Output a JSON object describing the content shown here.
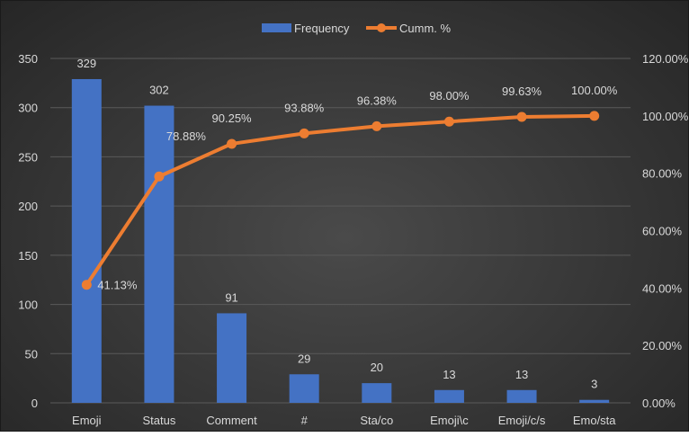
{
  "chart_data": {
    "type": "bar",
    "categories": [
      "Emoji",
      "Status",
      "Comment",
      "#",
      "Sta/co",
      "Emoji\\c",
      "Emoji/c/s",
      "Emo/sta"
    ],
    "series": [
      {
        "name": "Frequency",
        "type": "bar",
        "axis": "left",
        "values": [
          329,
          302,
          91,
          29,
          20,
          13,
          13,
          3
        ],
        "labels": [
          "329",
          "302",
          "91",
          "29",
          "20",
          "13",
          "13",
          "3"
        ],
        "color": "#4472C4"
      },
      {
        "name": "Cumm. %",
        "type": "line",
        "axis": "right",
        "values": [
          41.13,
          78.88,
          90.25,
          93.88,
          96.38,
          98.0,
          99.63,
          100.0
        ],
        "labels": [
          "41.13%",
          "78.88%",
          "90.25%",
          "93.88%",
          "96.38%",
          "98.00%",
          "99.63%",
          "100.00%"
        ],
        "color": "#ED7D31"
      }
    ],
    "y_left": {
      "min": 0,
      "max": 350,
      "ticks": [
        0,
        50,
        100,
        150,
        200,
        250,
        300,
        350
      ],
      "tick_labels": [
        "0",
        "50",
        "100",
        "150",
        "200",
        "250",
        "300",
        "350"
      ]
    },
    "y_right": {
      "min": 0,
      "max": 120,
      "ticks": [
        0,
        20,
        40,
        60,
        80,
        100,
        120
      ],
      "tick_labels": [
        "0.00%",
        "20.00%",
        "40.00%",
        "60.00%",
        "80.00%",
        "100.00%",
        "120.00%"
      ]
    },
    "grid": true,
    "legend": "top-center",
    "title": "",
    "xlabel": "",
    "ylabel": ""
  },
  "colors": {
    "text": "#d9d9d9",
    "grid": "#5a5a5a"
  }
}
